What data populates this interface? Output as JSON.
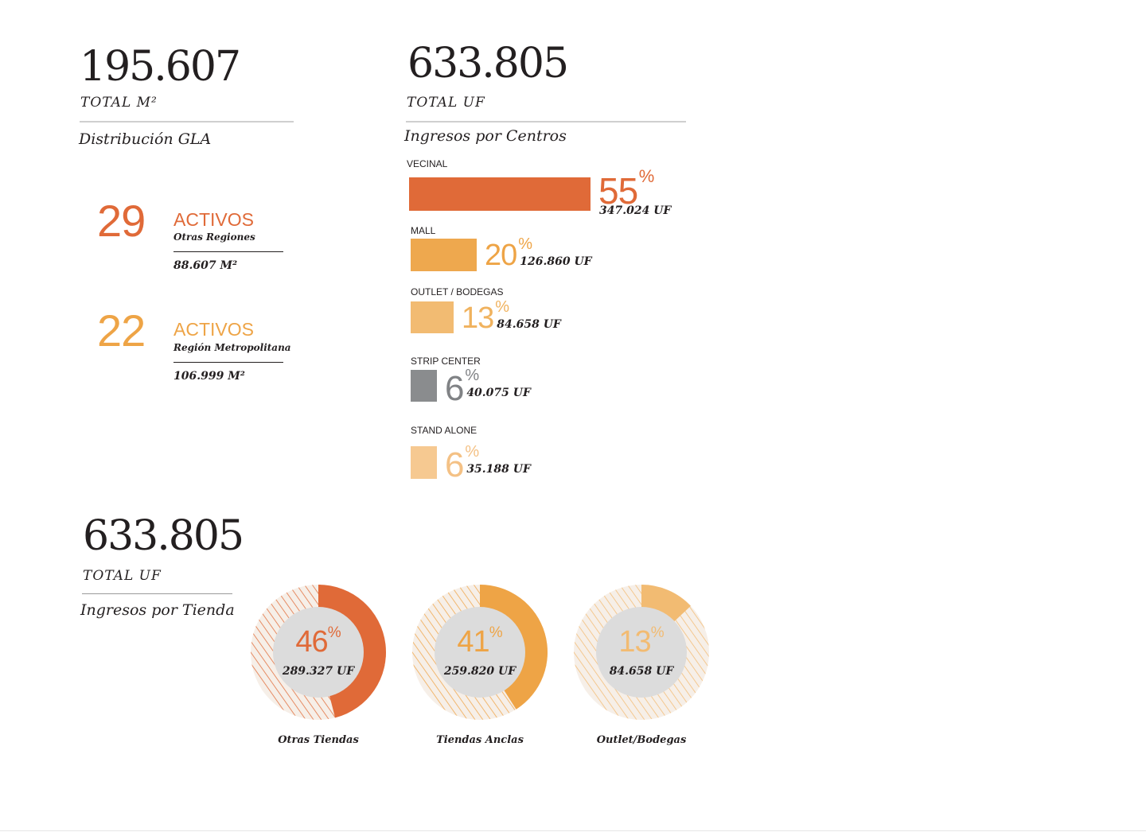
{
  "gla": {
    "total": "195.607",
    "total_label": "TOTAL M²",
    "section_title": "Distribución GLA",
    "groups": [
      {
        "count": "29",
        "word": "ACTIVOS",
        "region": "Otras Regiones",
        "m2": "88.607 M²",
        "color": "#e06a38"
      },
      {
        "count": "22",
        "word": "ACTIVOS",
        "region": "Región Metropolitana",
        "m2": "106.999 M²",
        "color": "#eea446"
      }
    ]
  },
  "centros": {
    "total": "633.805",
    "total_label": "TOTAL UF",
    "section_title": "Ingresos por Centros",
    "items": [
      {
        "label": "VECINAL",
        "pct": "55",
        "sign": "%",
        "uf": "347.024 UF",
        "color": "#e06a38",
        "pct_color": "#e06a38"
      },
      {
        "label": "MALL",
        "pct": "20",
        "sign": "%",
        "uf": "126.860 UF",
        "color": "#eea84e",
        "pct_color": "#eea446"
      },
      {
        "label": "OUTLET / BODEGAS",
        "pct": "13",
        "sign": "%",
        "uf": "84.658 UF",
        "color": "#f2bb72",
        "pct_color": "#f0b25e"
      },
      {
        "label": "STRIP CENTER",
        "pct": "6",
        "sign": "%",
        "uf": "40.075 UF",
        "color": "#8a8c8e",
        "pct_color": "#808285"
      },
      {
        "label": "STAND ALONE",
        "pct": "6",
        "sign": "%",
        "uf": "35.188 UF",
        "color": "#f6c991",
        "pct_color": "#f4c185"
      }
    ]
  },
  "tienda": {
    "total": "633.805",
    "total_label": "TOTAL UF",
    "section_title": "Ingresos por Tienda",
    "donuts": [
      {
        "pct": "46",
        "sign": "%",
        "uf": "289.327 UF",
        "caption": "Otras Tiendas",
        "color": "#e06a38"
      },
      {
        "pct": "41",
        "sign": "%",
        "uf": "259.820 UF",
        "caption": "Tiendas Anclas",
        "color": "#eea446"
      },
      {
        "pct": "13",
        "sign": "%",
        "uf": "84.658 UF",
        "caption": "Outlet/Bodegas",
        "color": "#f2bb72"
      }
    ]
  },
  "chart_data": [
    {
      "type": "bar",
      "title": "Ingresos por Centros",
      "categories": [
        "VECINAL",
        "MALL",
        "OUTLET / BODEGAS",
        "STRIP CENTER",
        "STAND ALONE"
      ],
      "values": [
        55,
        20,
        13,
        6,
        6
      ],
      "uf_values": [
        347024,
        126860,
        84658,
        40075,
        35188
      ]
    },
    {
      "type": "pie",
      "title": "Ingresos por Tienda",
      "categories": [
        "Otras Tiendas",
        "Tiendas Anclas",
        "Outlet/Bodegas"
      ],
      "values": [
        46,
        41,
        13
      ],
      "uf_values": [
        289327,
        259820,
        84658
      ]
    }
  ]
}
